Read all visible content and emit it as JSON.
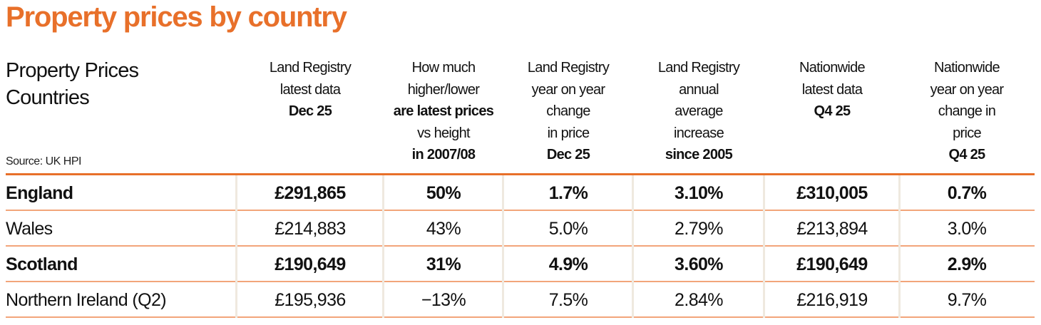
{
  "title": "Property prices by country",
  "header": {
    "main": [
      "Property Prices",
      "Countries"
    ],
    "source": "Source: UK HPI"
  },
  "colors": {
    "accent": "#e8702a",
    "row_rule": "#f2a57a",
    "column_divider": "#efe9df"
  },
  "chart_data": {
    "type": "table",
    "title": "Property prices by country",
    "columns": [
      {
        "lines": [
          {
            "t": "Land Registry",
            "b": false
          },
          {
            "t": "latest data",
            "b": false
          },
          {
            "t": "Dec 25",
            "b": true
          }
        ]
      },
      {
        "lines": [
          {
            "t": "How much",
            "b": false
          },
          {
            "t": "higher/lower",
            "b": false
          },
          {
            "t": "are latest prices",
            "b": true
          },
          {
            "t": "vs height",
            "b": false
          },
          {
            "t": "in 2007/08",
            "b": true
          }
        ]
      },
      {
        "lines": [
          {
            "t": "Land Registry",
            "b": false
          },
          {
            "t": "year on year",
            "b": false
          },
          {
            "t": "change",
            "b": false
          },
          {
            "t": "in price",
            "b": false
          },
          {
            "t": "Dec 25",
            "b": true
          }
        ]
      },
      {
        "lines": [
          {
            "t": "Land Registry",
            "b": false
          },
          {
            "t": "annual",
            "b": false
          },
          {
            "t": "average",
            "b": false
          },
          {
            "t": "increase",
            "b": false
          },
          {
            "t": "since 2005",
            "b": true
          }
        ]
      },
      {
        "lines": [
          {
            "t": "Nationwide",
            "b": false
          },
          {
            "t": "latest data",
            "b": false
          },
          {
            "t": "Q4 25",
            "b": true
          }
        ]
      },
      {
        "lines": [
          {
            "t": "Nationwide",
            "b": false
          },
          {
            "t": "year on year",
            "b": false
          },
          {
            "t": "change in",
            "b": false
          },
          {
            "t": "price",
            "b": false
          },
          {
            "t": "Q4 25",
            "b": true
          }
        ]
      }
    ],
    "rows": [
      {
        "name": "England",
        "bold": true,
        "values": [
          "£291,865",
          "50%",
          "1.7%",
          "3.10%",
          "£310,005",
          "0.7%"
        ]
      },
      {
        "name": "Wales",
        "bold": false,
        "values": [
          "£214,883",
          "43%",
          "5.0%",
          "2.79%",
          "£213,894",
          "3.0%"
        ]
      },
      {
        "name": "Scotland",
        "bold": true,
        "values": [
          "£190,649",
          "31%",
          "4.9%",
          "3.60%",
          "£190,649",
          "2.9%"
        ]
      },
      {
        "name": "Northern Ireland (Q2)",
        "bold": false,
        "values": [
          "£195,936",
          "−13%",
          "7.5%",
          "2.84%",
          "£216,919",
          "9.7%"
        ]
      }
    ]
  }
}
